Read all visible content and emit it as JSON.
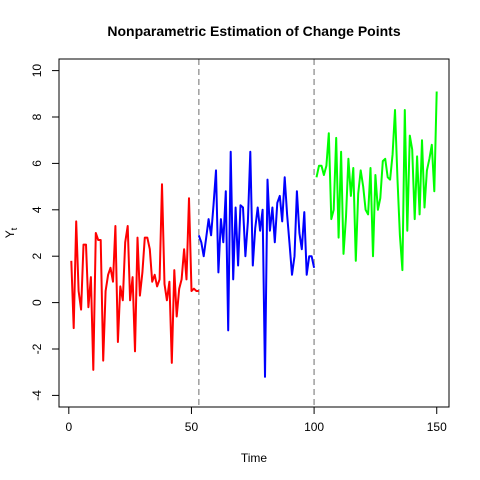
{
  "chart_data": {
    "type": "line",
    "title": "Nonparametric Estimation of Change Points",
    "xlabel": "Time",
    "ylabel": "Y",
    "ylabel_subscript": "t",
    "xlim": [
      -4,
      155
    ],
    "ylim": [
      -4.5,
      10.5
    ],
    "x_ticks": [
      0,
      50,
      100,
      150
    ],
    "y_ticks": [
      -4,
      -2,
      0,
      2,
      4,
      6,
      8,
      10
    ],
    "grid": false,
    "legend": "none",
    "change_points": [
      53,
      100
    ],
    "change_point_color": "#9e9e9e",
    "series": [
      {
        "color": "#ff0000",
        "x": [
          1,
          2,
          3,
          4,
          5,
          6,
          7,
          8,
          9,
          10,
          11,
          12,
          13,
          14,
          15,
          16,
          17,
          18,
          19,
          20,
          21,
          22,
          23,
          24,
          25,
          26,
          27,
          28,
          29,
          30,
          31,
          32,
          33,
          34,
          35,
          36,
          37,
          38,
          39,
          40,
          41,
          42,
          43,
          44,
          45,
          46,
          47,
          48,
          49,
          50,
          51,
          52,
          53
        ],
        "y": [
          1.8,
          -1.1,
          3.5,
          0.5,
          -0.3,
          2.5,
          2.5,
          -0.2,
          1.1,
          -2.9,
          3.0,
          2.7,
          2.7,
          -2.5,
          0.5,
          1.2,
          1.5,
          0.9,
          3.3,
          -1.7,
          0.7,
          0.1,
          2.6,
          3.3,
          0.1,
          1.1,
          -2.1,
          2.8,
          0.3,
          1.3,
          2.8,
          2.8,
          2.3,
          0.9,
          1.2,
          0.7,
          1.0,
          5.1,
          0.8,
          0.1,
          0.9,
          -2.6,
          1.4,
          -0.6,
          0.6,
          1.0,
          2.3,
          1.0,
          4.5,
          0.5,
          0.6,
          0.5,
          0.5
        ]
      },
      {
        "color": "#0000ff",
        "x": [
          53,
          54,
          55,
          56,
          57,
          58,
          59,
          60,
          61,
          62,
          63,
          64,
          65,
          66,
          67,
          68,
          69,
          70,
          71,
          72,
          73,
          74,
          75,
          76,
          77,
          78,
          79,
          80,
          81,
          82,
          83,
          84,
          85,
          86,
          87,
          88,
          89,
          90,
          91,
          92,
          93,
          94,
          95,
          96,
          97,
          98,
          99,
          100
        ],
        "y": [
          2.9,
          2.6,
          2.0,
          2.8,
          3.6,
          2.9,
          4.2,
          5.7,
          1.3,
          3.6,
          2.6,
          4.8,
          -1.2,
          6.5,
          1.0,
          4.1,
          1.6,
          4.2,
          4.1,
          2.0,
          3.5,
          6.5,
          1.6,
          3.2,
          4.1,
          3.1,
          4.0,
          -3.2,
          5.3,
          3.1,
          4.1,
          2.6,
          4.3,
          4.6,
          3.5,
          5.4,
          3.8,
          2.5,
          1.2,
          2.0,
          4.8,
          3.0,
          2.3,
          3.9,
          1.2,
          2.0,
          2.0,
          1.5
        ]
      },
      {
        "color": "#00ff00",
        "x": [
          101,
          102,
          103,
          104,
          105,
          106,
          107,
          108,
          109,
          110,
          111,
          112,
          113,
          114,
          115,
          116,
          117,
          118,
          119,
          120,
          121,
          122,
          123,
          124,
          125,
          126,
          127,
          128,
          129,
          130,
          131,
          132,
          133,
          134,
          135,
          136,
          137,
          138,
          139,
          140,
          141,
          142,
          143,
          144,
          145,
          146,
          147,
          148,
          149,
          150
        ],
        "y": [
          5.4,
          5.9,
          5.9,
          5.5,
          5.9,
          7.3,
          3.6,
          4.0,
          7.1,
          2.8,
          6.5,
          2.1,
          3.7,
          6.2,
          4.6,
          5.8,
          1.8,
          4.7,
          5.7,
          5.0,
          4.0,
          3.8,
          5.8,
          2.0,
          5.5,
          4.0,
          4.5,
          6.1,
          6.2,
          5.4,
          5.3,
          6.4,
          8.3,
          5.3,
          2.9,
          1.4,
          8.3,
          3.1,
          7.2,
          6.6,
          3.6,
          6.3,
          3.8,
          7.0,
          4.1,
          5.7,
          6.2,
          6.8,
          4.8,
          9.1
        ]
      }
    ]
  }
}
